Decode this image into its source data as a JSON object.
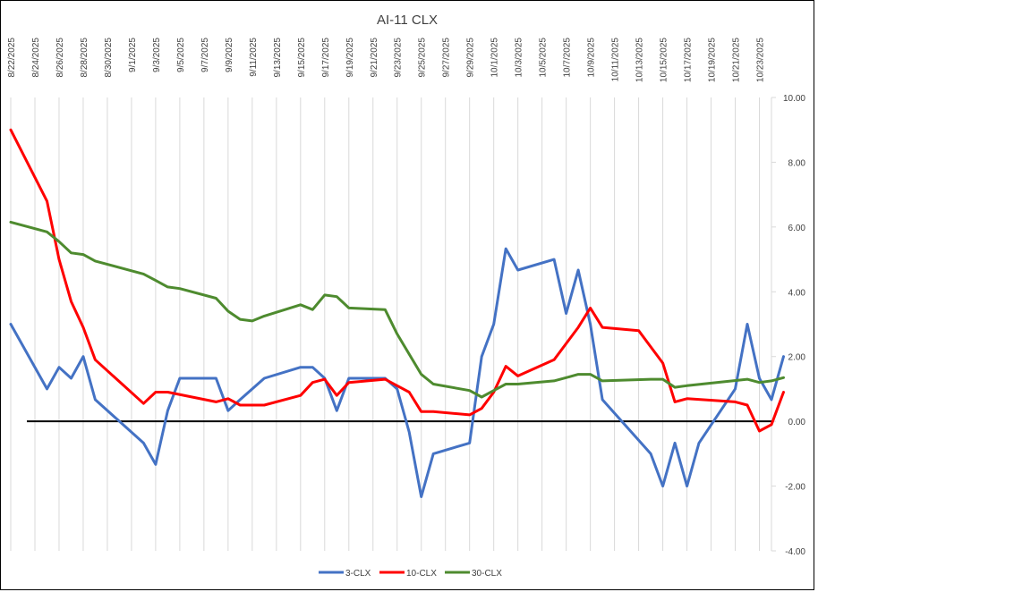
{
  "chart_data": {
    "type": "line",
    "title": "AI-11 CLX",
    "xlabel": "",
    "ylabel": "",
    "ylim": [
      -4,
      10
    ],
    "y_ticks": [
      10,
      8,
      6,
      4,
      2,
      0,
      -2,
      -4
    ],
    "y_tick_labels": [
      "10.00",
      "8.00",
      "6.00",
      "4.00",
      "2.00",
      "0.00",
      "-2.00",
      "-4.00"
    ],
    "y_axis_position": "right",
    "x_range": [
      "8/22/2025",
      "10/24/2025"
    ],
    "x_tick_labels": [
      "8/22/2025",
      "8/24/2025",
      "8/26/2025",
      "8/28/2025",
      "8/30/2025",
      "9/1/2025",
      "9/3/2025",
      "9/5/2025",
      "9/7/2025",
      "9/9/2025",
      "9/11/2025",
      "9/13/2025",
      "9/15/2025",
      "9/17/2025",
      "9/19/2025",
      "9/21/2025",
      "9/23/2025",
      "9/25/2025",
      "9/27/2025",
      "9/29/2025",
      "10/1/2025",
      "10/3/2025",
      "10/5/2025",
      "10/7/2025",
      "10/9/2025",
      "10/11/2025",
      "10/13/2025",
      "10/15/2025",
      "10/17/2025",
      "10/19/2025",
      "10/21/2025",
      "10/23/2025"
    ],
    "grid": true,
    "legend": "bottom",
    "series": [
      {
        "name": "3-CLX",
        "color": "#4472C4",
        "points": [
          [
            "8/22/2025",
            3.0
          ],
          [
            "8/25/2025",
            1.0
          ],
          [
            "8/26/2025",
            1.67
          ],
          [
            "8/27/2025",
            1.33
          ],
          [
            "8/28/2025",
            2.0
          ],
          [
            "8/29/2025",
            0.67
          ],
          [
            "9/2/2025",
            -0.67
          ],
          [
            "9/3/2025",
            -1.33
          ],
          [
            "9/4/2025",
            0.33
          ],
          [
            "9/5/2025",
            1.33
          ],
          [
            "9/8/2025",
            1.33
          ],
          [
            "9/9/2025",
            0.33
          ],
          [
            "9/10/2025",
            0.67
          ],
          [
            "9/12/2025",
            1.33
          ],
          [
            "9/15/2025",
            1.67
          ],
          [
            "9/16/2025",
            1.67
          ],
          [
            "9/17/2025",
            1.33
          ],
          [
            "9/18/2025",
            0.33
          ],
          [
            "9/19/2025",
            1.33
          ],
          [
            "9/22/2025",
            1.33
          ],
          [
            "9/23/2025",
            1.0
          ],
          [
            "9/24/2025",
            -0.33
          ],
          [
            "9/25/2025",
            -2.33
          ],
          [
            "9/26/2025",
            -1.0
          ],
          [
            "9/29/2025",
            -0.67
          ],
          [
            "9/30/2025",
            2.0
          ],
          [
            "10/1/2025",
            3.0
          ],
          [
            "10/2/2025",
            5.33
          ],
          [
            "10/3/2025",
            4.67
          ],
          [
            "10/6/2025",
            5.0
          ],
          [
            "10/7/2025",
            3.33
          ],
          [
            "10/8/2025",
            4.67
          ],
          [
            "10/9/2025",
            3.0
          ],
          [
            "10/10/2025",
            0.67
          ],
          [
            "10/14/2025",
            -1.0
          ],
          [
            "10/15/2025",
            -2.0
          ],
          [
            "10/16/2025",
            -0.67
          ],
          [
            "10/17/2025",
            -2.0
          ],
          [
            "10/18/2025",
            -0.67
          ],
          [
            "10/21/2025",
            1.0
          ],
          [
            "10/22/2025",
            3.0
          ],
          [
            "10/23/2025",
            1.33
          ],
          [
            "10/24/2025",
            0.67
          ],
          [
            "10/25/2025",
            2.0
          ]
        ]
      },
      {
        "name": "10-CLX",
        "color": "#FF0000",
        "points": [
          [
            "8/22/2025",
            9.0
          ],
          [
            "8/25/2025",
            6.8
          ],
          [
            "8/26/2025",
            5.0
          ],
          [
            "8/27/2025",
            3.7
          ],
          [
            "8/28/2025",
            2.9
          ],
          [
            "8/29/2025",
            1.9
          ],
          [
            "9/2/2025",
            0.55
          ],
          [
            "9/3/2025",
            0.9
          ],
          [
            "9/4/2025",
            0.9
          ],
          [
            "9/8/2025",
            0.6
          ],
          [
            "9/9/2025",
            0.7
          ],
          [
            "9/10/2025",
            0.5
          ],
          [
            "9/12/2025",
            0.5
          ],
          [
            "9/15/2025",
            0.8
          ],
          [
            "9/16/2025",
            1.2
          ],
          [
            "9/17/2025",
            1.3
          ],
          [
            "9/18/2025",
            0.8
          ],
          [
            "9/19/2025",
            1.2
          ],
          [
            "9/22/2025",
            1.3
          ],
          [
            "9/23/2025",
            1.1
          ],
          [
            "9/24/2025",
            0.9
          ],
          [
            "9/25/2025",
            0.3
          ],
          [
            "9/26/2025",
            0.3
          ],
          [
            "9/29/2025",
            0.2
          ],
          [
            "9/30/2025",
            0.4
          ],
          [
            "10/1/2025",
            0.9
          ],
          [
            "10/2/2025",
            1.7
          ],
          [
            "10/3/2025",
            1.4
          ],
          [
            "10/6/2025",
            1.9
          ],
          [
            "10/8/2025",
            2.9
          ],
          [
            "10/9/2025",
            3.5
          ],
          [
            "10/10/2025",
            2.9
          ],
          [
            "10/13/2025",
            2.8
          ],
          [
            "10/15/2025",
            1.8
          ],
          [
            "10/16/2025",
            0.6
          ],
          [
            "10/17/2025",
            0.7
          ],
          [
            "10/21/2025",
            0.6
          ],
          [
            "10/22/2025",
            0.5
          ],
          [
            "10/23/2025",
            -0.3
          ],
          [
            "10/24/2025",
            -0.1
          ],
          [
            "10/25/2025",
            0.9
          ]
        ]
      },
      {
        "name": "30-CLX",
        "color": "#4E8B2F",
        "points": [
          [
            "8/22/2025",
            6.15
          ],
          [
            "8/25/2025",
            5.85
          ],
          [
            "8/26/2025",
            5.55
          ],
          [
            "8/27/2025",
            5.2
          ],
          [
            "8/28/2025",
            5.15
          ],
          [
            "8/29/2025",
            4.95
          ],
          [
            "9/2/2025",
            4.55
          ],
          [
            "9/3/2025",
            4.35
          ],
          [
            "9/4/2025",
            4.15
          ],
          [
            "9/5/2025",
            4.1
          ],
          [
            "9/8/2025",
            3.8
          ],
          [
            "9/9/2025",
            3.4
          ],
          [
            "9/10/2025",
            3.15
          ],
          [
            "9/11/2025",
            3.1
          ],
          [
            "9/12/2025",
            3.25
          ],
          [
            "9/15/2025",
            3.6
          ],
          [
            "9/16/2025",
            3.45
          ],
          [
            "9/17/2025",
            3.9
          ],
          [
            "9/18/2025",
            3.85
          ],
          [
            "9/19/2025",
            3.5
          ],
          [
            "9/22/2025",
            3.45
          ],
          [
            "9/23/2025",
            2.7
          ],
          [
            "9/25/2025",
            1.45
          ],
          [
            "9/26/2025",
            1.15
          ],
          [
            "9/29/2025",
            0.95
          ],
          [
            "9/30/2025",
            0.75
          ],
          [
            "10/1/2025",
            0.95
          ],
          [
            "10/2/2025",
            1.15
          ],
          [
            "10/3/2025",
            1.15
          ],
          [
            "10/6/2025",
            1.25
          ],
          [
            "10/7/2025",
            1.35
          ],
          [
            "10/8/2025",
            1.45
          ],
          [
            "10/9/2025",
            1.45
          ],
          [
            "10/10/2025",
            1.25
          ],
          [
            "10/14/2025",
            1.3
          ],
          [
            "10/15/2025",
            1.3
          ],
          [
            "10/16/2025",
            1.05
          ],
          [
            "10/17/2025",
            1.1
          ],
          [
            "10/22/2025",
            1.3
          ],
          [
            "10/23/2025",
            1.2
          ],
          [
            "10/24/2025",
            1.25
          ],
          [
            "10/25/2025",
            1.35
          ]
        ]
      }
    ],
    "reference_line": {
      "y": 0,
      "color": "#000000"
    }
  }
}
